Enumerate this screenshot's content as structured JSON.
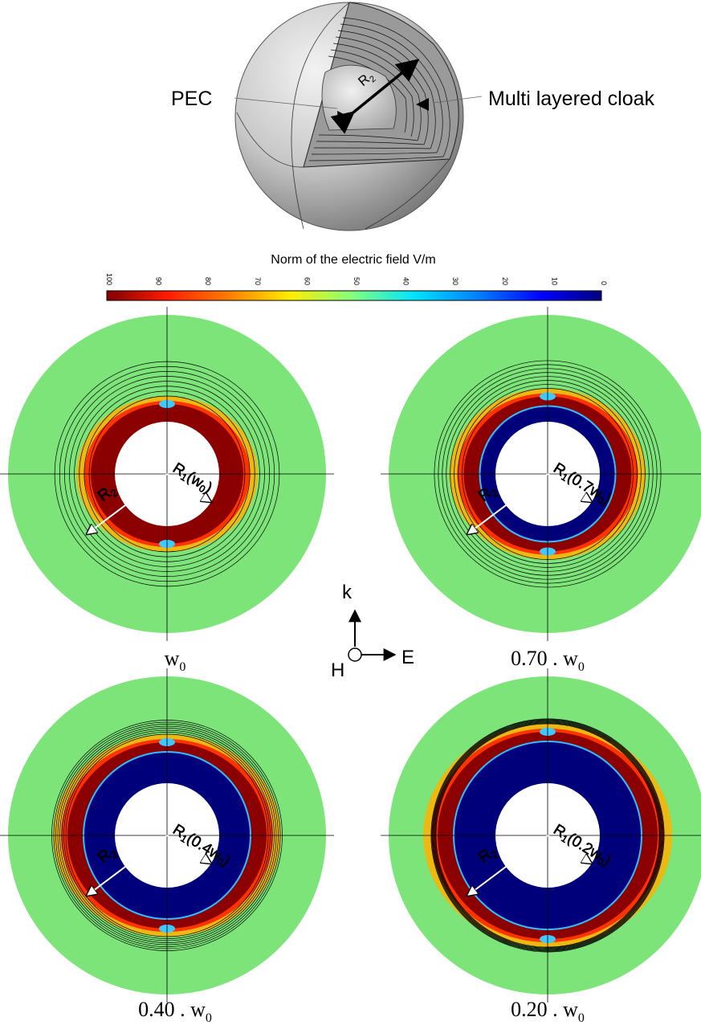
{
  "figure": {
    "sphere": {
      "label_pec": "PEC",
      "label_cloak": "Multi layered cloak",
      "label_r2": "R",
      "label_r2_sub": "2"
    },
    "colorbar": {
      "title": "Norm of the electric field V/m",
      "ticks": [
        "100",
        "90",
        "80",
        "70",
        "60",
        "50",
        "40",
        "30",
        "20",
        "10",
        "0"
      ],
      "colormap": "jet-reversed",
      "range": [
        0,
        100
      ]
    },
    "axes_indicator": {
      "k": "k",
      "E": "E",
      "H": "H"
    },
    "panels": [
      {
        "caption_main": "w",
        "caption_sub": "0",
        "r1_label": "R",
        "r1_sub": "1",
        "r1_arg": "(w",
        "r1_arg_sub": "0",
        "r1_arg_end": ")",
        "r2_label": "R",
        "r2_sub": "2",
        "low_field_fraction": 0
      },
      {
        "caption_main": "0.70 . w",
        "caption_sub": "0",
        "r1_label": "R",
        "r1_sub": "1",
        "r1_arg": "(0.7w",
        "r1_arg_sub": "0",
        "r1_arg_end": ")",
        "r2_label": "R",
        "r2_sub": "2",
        "low_field_fraction": 0.3
      },
      {
        "caption_main": "0.40 . w",
        "caption_sub": "0",
        "r1_label": "R",
        "r1_sub": "1",
        "r1_arg": "(0.4w",
        "r1_arg_sub": "0",
        "r1_arg_end": ")",
        "r2_label": "R",
        "r2_sub": "2",
        "low_field_fraction": 0.6
      },
      {
        "caption_main": "0.20 . w",
        "caption_sub": "0",
        "r1_label": "R",
        "r1_sub": "1",
        "r1_arg": "(0.2w",
        "r1_arg_sub": "0",
        "r1_arg_end": ")",
        "r2_label": "R",
        "r2_sub": "2",
        "low_field_fraction": 0.8
      }
    ],
    "colors": {
      "background_field": "#7de47a",
      "cloak_red": "#8b0000",
      "cloak_blue": "#00007a",
      "sphere_gray": "#bfbfbf"
    }
  }
}
